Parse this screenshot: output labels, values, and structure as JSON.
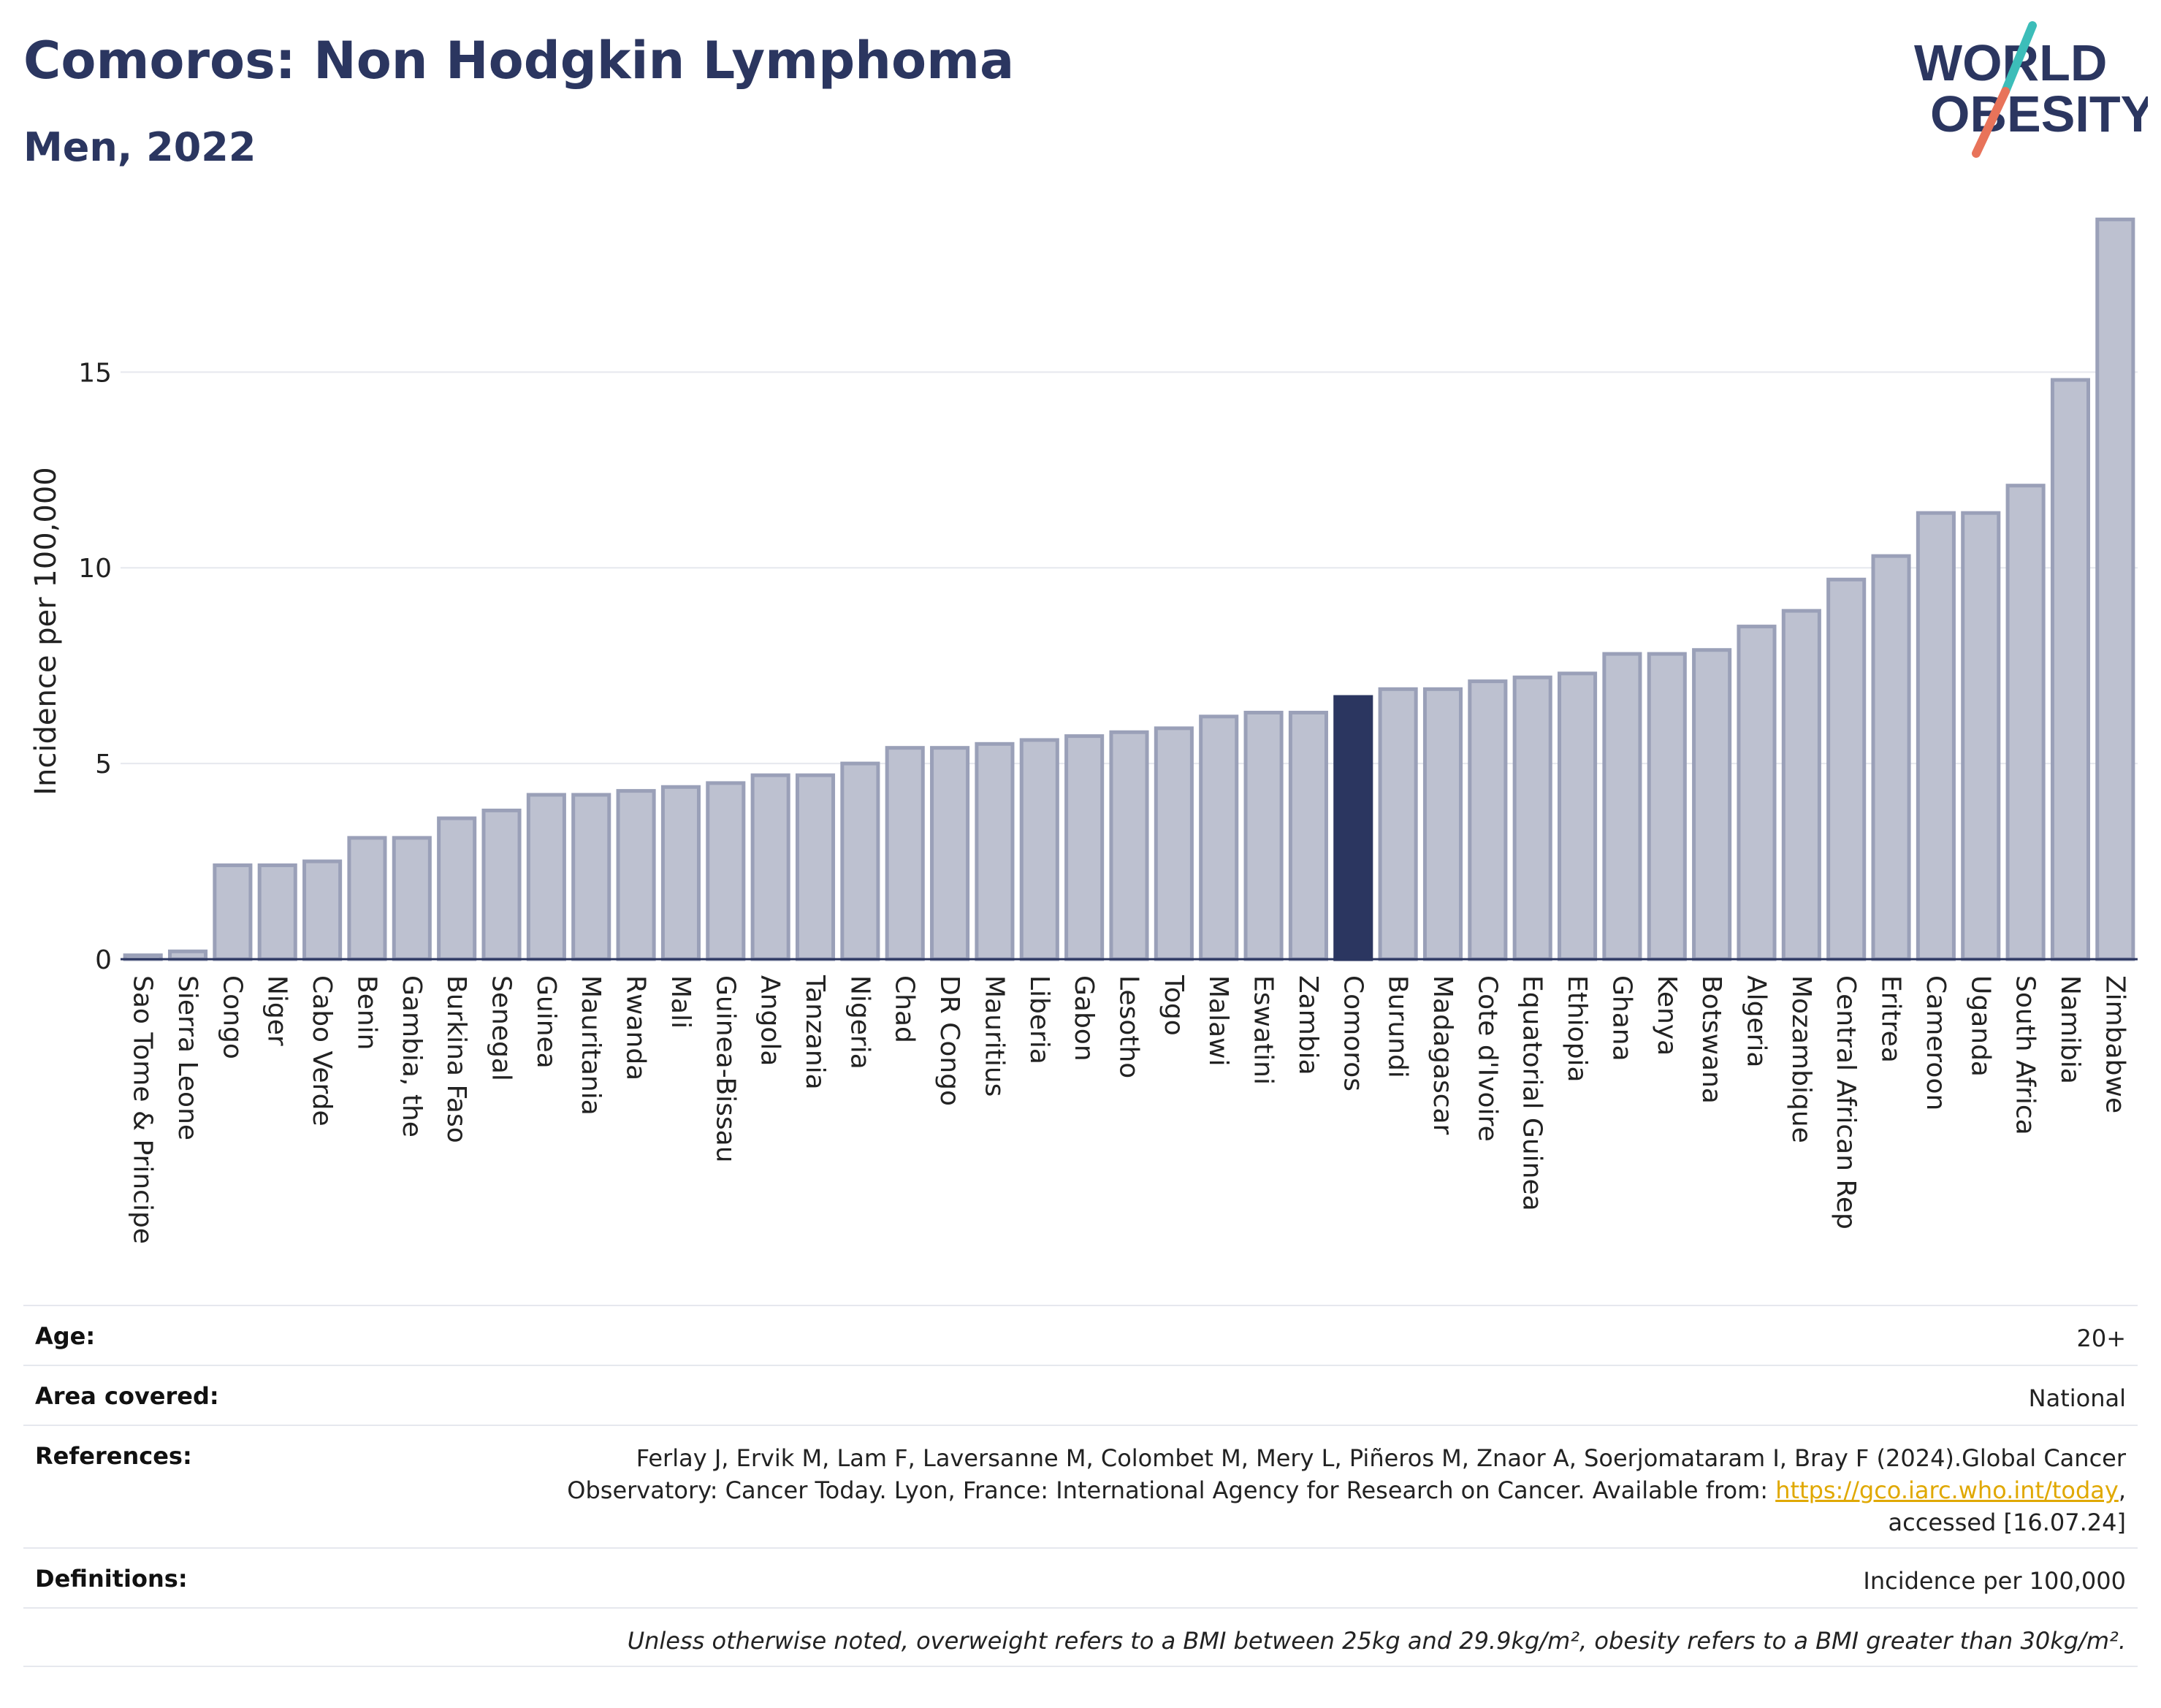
{
  "header": {
    "title": "Comoros: Non Hodgkin Lymphoma",
    "subtitle": "Men, 2022"
  },
  "logo": {
    "line1": "WORLD",
    "line2": "OBESITY",
    "colors": {
      "text": "#2b3660",
      "slash_top": "#3cbdb9",
      "slash_bottom": "#e8735a"
    }
  },
  "chart_data": {
    "type": "bar",
    "ylabel": "Incidence per 100,000",
    "ylim": [
      0,
      19
    ],
    "yticks": [
      0,
      5,
      10,
      15
    ],
    "grid": true,
    "highlight": "Comoros",
    "colors": {
      "bar": "#bdc1d0",
      "bar_edge": "#9aa0b8",
      "highlight": "#2b3660",
      "grid": "#e6e8ee"
    },
    "categories": [
      "Sao Tome & Principe",
      "Sierra Leone",
      "Congo",
      "Niger",
      "Cabo Verde",
      "Benin",
      "Gambia, the",
      "Burkina Faso",
      "Senegal",
      "Guinea",
      "Mauritania",
      "Rwanda",
      "Mali",
      "Guinea-Bissau",
      "Angola",
      "Tanzania",
      "Nigeria",
      "Chad",
      "DR Congo",
      "Mauritius",
      "Liberia",
      "Gabon",
      "Lesotho",
      "Togo",
      "Malawi",
      "Eswatini",
      "Zambia",
      "Comoros",
      "Burundi",
      "Madagascar",
      "Cote d'Ivoire",
      "Equatorial Guinea",
      "Ethiopia",
      "Ghana",
      "Kenya",
      "Botswana",
      "Algeria",
      "Mozambique",
      "Central African Rep",
      "Eritrea",
      "Cameroon",
      "Uganda",
      "South Africa",
      "Namibia",
      "Zimbabwe"
    ],
    "values": [
      0.1,
      0.2,
      2.4,
      2.4,
      2.5,
      3.1,
      3.1,
      3.6,
      3.8,
      4.2,
      4.2,
      4.3,
      4.4,
      4.5,
      4.7,
      4.7,
      5.0,
      5.4,
      5.4,
      5.5,
      5.6,
      5.7,
      5.8,
      5.9,
      6.2,
      6.3,
      6.3,
      6.7,
      6.9,
      6.9,
      7.1,
      7.2,
      7.3,
      7.8,
      7.8,
      7.9,
      8.5,
      8.9,
      9.7,
      10.3,
      11.4,
      11.4,
      12.1,
      14.8,
      18.9
    ]
  },
  "info": {
    "age_label": "Age:",
    "age_value": "20+",
    "area_label": "Area covered:",
    "area_value": "National",
    "references_label": "References:",
    "references_line1": "Ferlay J, Ervik M, Lam F, Laversanne M, Colombet M, Mery L, Piñeros M, Znaor A, Soerjomataram I, Bray F (2024).Global Cancer",
    "references_line2_pre": "Observatory: Cancer Today. Lyon, France: International Agency for Research on Cancer. Available from: ",
    "references_link": "https://gco.iarc.who.int/today",
    "references_line2_post": ",",
    "references_line3": "accessed [16.07.24]",
    "definitions_label": "Definitions:",
    "definitions_value": "Incidence per 100,000",
    "note": "Unless otherwise noted, overweight refers to a BMI between 25kg and 29.9kg/m², obesity refers to a BMI greater than 30kg/m²."
  }
}
